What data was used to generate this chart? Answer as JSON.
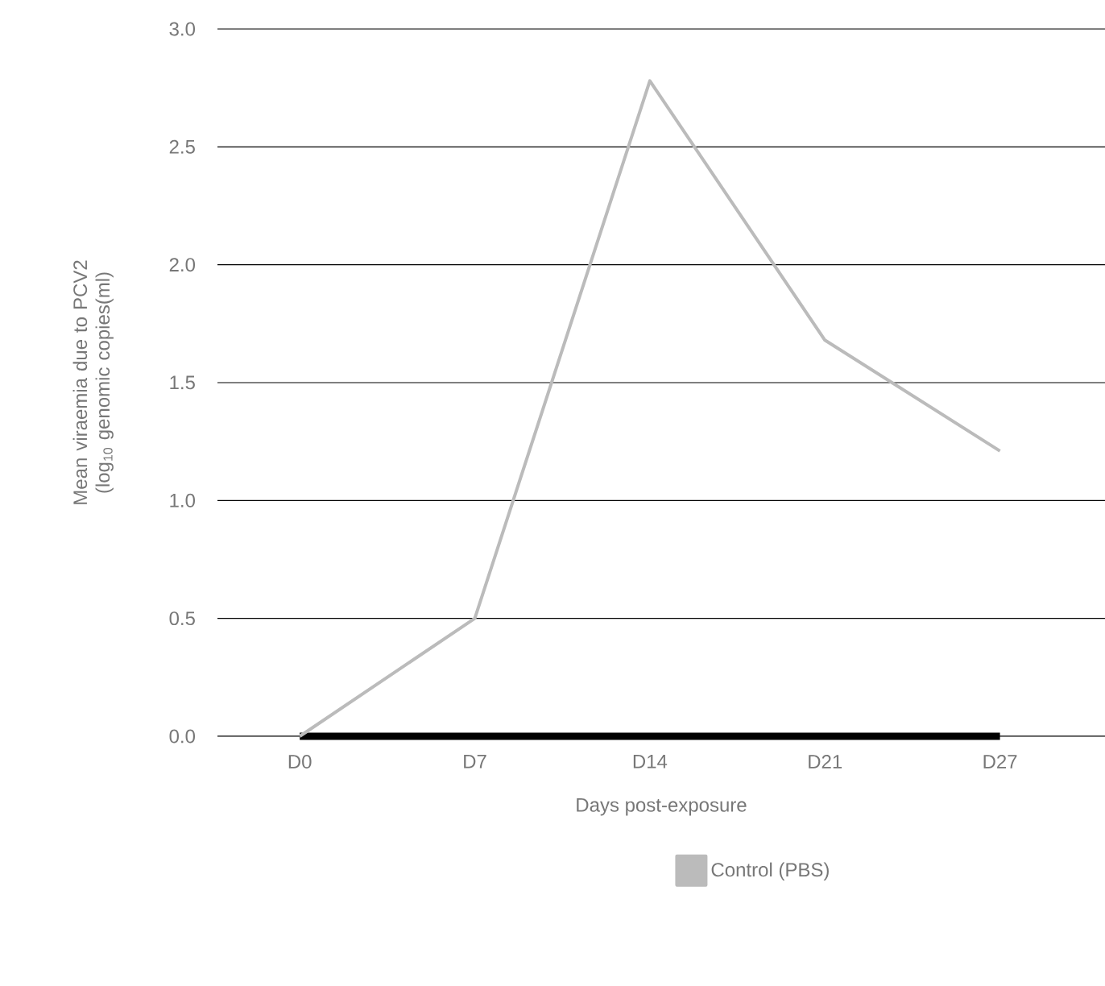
{
  "chart_data": {
    "type": "line",
    "xlabel": "Days post-exposure",
    "ylabel": "Mean viraemia due to PCV2 (log$_{10}$ genomic copies(ml)",
    "categories": [
      "D0",
      "D7",
      "D14",
      "D21",
      "D27"
    ],
    "series": [
      {
        "color": "#000000",
        "values": [
          0,
          0,
          0,
          0,
          0
        ]
      },
      {
        "name": "Control (PBS)",
        "color": "#bbbbbb",
        "values": [
          0,
          0.5,
          2.78,
          1.68,
          1.21
        ]
      }
    ],
    "ylim": [
      0,
      3
    ],
    "yticks": [
      {
        "value": 0,
        "label": "0.0"
      },
      {
        "value": 0.5,
        "label": "0.5"
      },
      {
        "value": 1,
        "label": "1.0"
      },
      {
        "value": 1.5,
        "label": "1.5"
      },
      {
        "value": 2,
        "label": "2.0"
      },
      {
        "value": 2.5,
        "label": "2.5"
      },
      {
        "value": 3,
        "label": "3.0"
      }
    ],
    "grid": "y",
    "legend": "bottom",
    "marker": "none",
    "line_style": "solid"
  }
}
